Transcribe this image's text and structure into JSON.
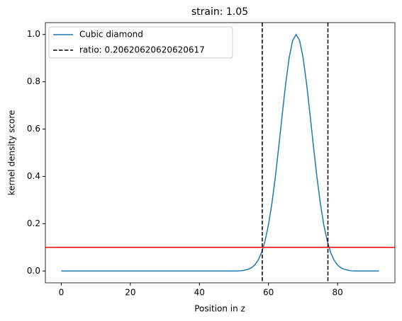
{
  "chart_data": {
    "type": "line",
    "title": "strain: 1.05",
    "xlabel": "Position in z",
    "ylabel": "kernel density score",
    "series": [
      {
        "name": "Cubic diamond",
        "color": "#1f77b4",
        "x": [
          0,
          2,
          4,
          6,
          8,
          10,
          12,
          14,
          16,
          18,
          20,
          22,
          24,
          26,
          28,
          30,
          32,
          34,
          36,
          38,
          40,
          42,
          44,
          46,
          48,
          49,
          50,
          51,
          52,
          53,
          54,
          55,
          56,
          57,
          58,
          59,
          60,
          61,
          62,
          63,
          64,
          65,
          66,
          67,
          68,
          69,
          70,
          71,
          72,
          73,
          74,
          75,
          76,
          77,
          78,
          79,
          80,
          81,
          82,
          83,
          84,
          85,
          86,
          87,
          88,
          90,
          92
        ],
        "values": [
          0,
          0,
          0,
          0,
          0,
          0,
          0,
          0,
          0,
          0,
          0,
          0,
          0,
          0,
          0,
          0,
          0,
          0,
          0,
          0,
          0,
          0,
          0,
          0,
          0,
          0,
          0,
          0,
          0.001,
          0.003,
          0.007,
          0.013,
          0.025,
          0.046,
          0.078,
          0.127,
          0.196,
          0.287,
          0.4,
          0.529,
          0.665,
          0.795,
          0.903,
          0.975,
          1,
          0.975,
          0.903,
          0.795,
          0.665,
          0.529,
          0.4,
          0.287,
          0.196,
          0.127,
          0.078,
          0.046,
          0.025,
          0.013,
          0.007,
          0.003,
          0.001,
          0,
          0,
          0,
          0,
          0,
          0
        ]
      }
    ],
    "vlines": {
      "name": "ratio: 0.20620620620620617",
      "color": "#000000",
      "x": [
        58.2,
        77.2
      ]
    },
    "hline": {
      "y": 0.1,
      "color": "#ff0000"
    },
    "xlim": [
      -4.6,
      96.6
    ],
    "ylim": [
      -0.05,
      1.05
    ],
    "xticks": [
      0,
      20,
      40,
      60,
      80
    ],
    "yticks": [
      {
        "value": 0,
        "label": "0.0"
      },
      {
        "value": 0.2,
        "label": "0.2"
      },
      {
        "value": 0.4,
        "label": "0.4"
      },
      {
        "value": 0.6,
        "label": "0.6"
      },
      {
        "value": 0.8,
        "label": "0.8"
      },
      {
        "value": 1,
        "label": "1.0"
      }
    ],
    "legend": "upper left"
  }
}
